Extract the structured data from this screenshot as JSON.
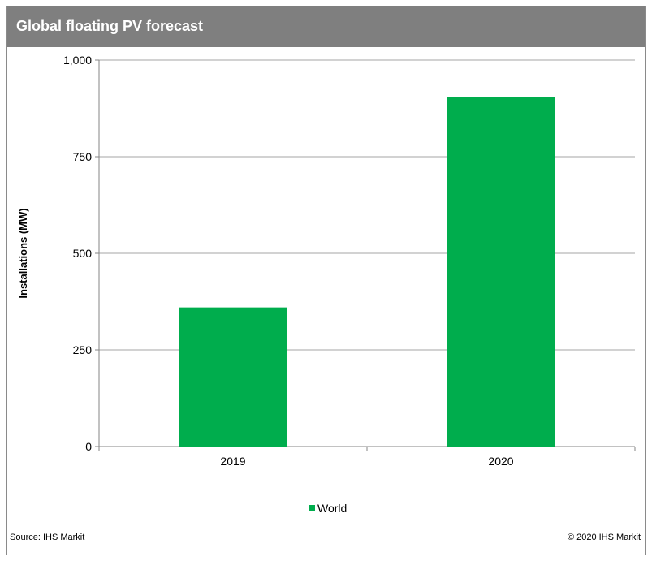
{
  "header": {
    "title": "Global floating PV forecast"
  },
  "footer": {
    "source": "Source: IHS Markit",
    "copyright": "© 2020 IHS Markit"
  },
  "chart_data": {
    "type": "bar",
    "title": "Global floating PV forecast",
    "xlabel": "",
    "ylabel": "Installations  (MW)",
    "categories": [
      "2019",
      "2020"
    ],
    "series": [
      {
        "name": "World",
        "values": [
          360,
          905
        ],
        "color": "#00ad4d"
      }
    ],
    "ylim": [
      0,
      1000
    ],
    "yticks": [
      0,
      250,
      500,
      750,
      1000
    ],
    "ytick_labels": [
      "0",
      "250",
      "500",
      "750",
      "1,000"
    ],
    "grid": true,
    "legend": "bottom-center"
  }
}
